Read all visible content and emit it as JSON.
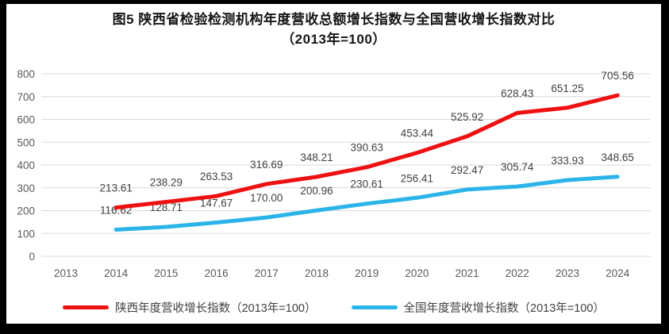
{
  "title": {
    "line1": "图5  陕西省检验检测机构年度营收总额增长指数与全国营收增长指数对比",
    "line2": "（2013年=100）"
  },
  "chart_data": {
    "type": "line",
    "categories": [
      "2013",
      "2014",
      "2015",
      "2016",
      "2017",
      "2018",
      "2019",
      "2020",
      "2021",
      "2022",
      "2023",
      "2024"
    ],
    "series": [
      {
        "name": "陕西年度营收增长指数（2013年=100）",
        "color": "#ee1111",
        "start_index": 1,
        "values": [
          "213.61",
          "238.29",
          "263.53",
          "316.69",
          "348.21",
          "390.63",
          "453.44",
          "525.92",
          "628.43",
          "651.25",
          "705.56"
        ]
      },
      {
        "name": "全国年度营收增长指数（2013年=100）",
        "color": "#2ab4e9",
        "start_index": 1,
        "values": [
          "116.62",
          "128.71",
          "147.67",
          "170.00",
          "200.96",
          "230.61",
          "256.41",
          "292.47",
          "305.74",
          "333.93",
          "348.65"
        ]
      }
    ],
    "ylim": [
      0,
      800
    ],
    "ytick_step": 100,
    "grid": true,
    "legend_position": "bottom",
    "grid_color": "#d9d9d9",
    "axis_text_color": "#595959",
    "data_label_color": "#3f3f3f",
    "frame_color": "#000000",
    "background_color": "#ffffff"
  }
}
